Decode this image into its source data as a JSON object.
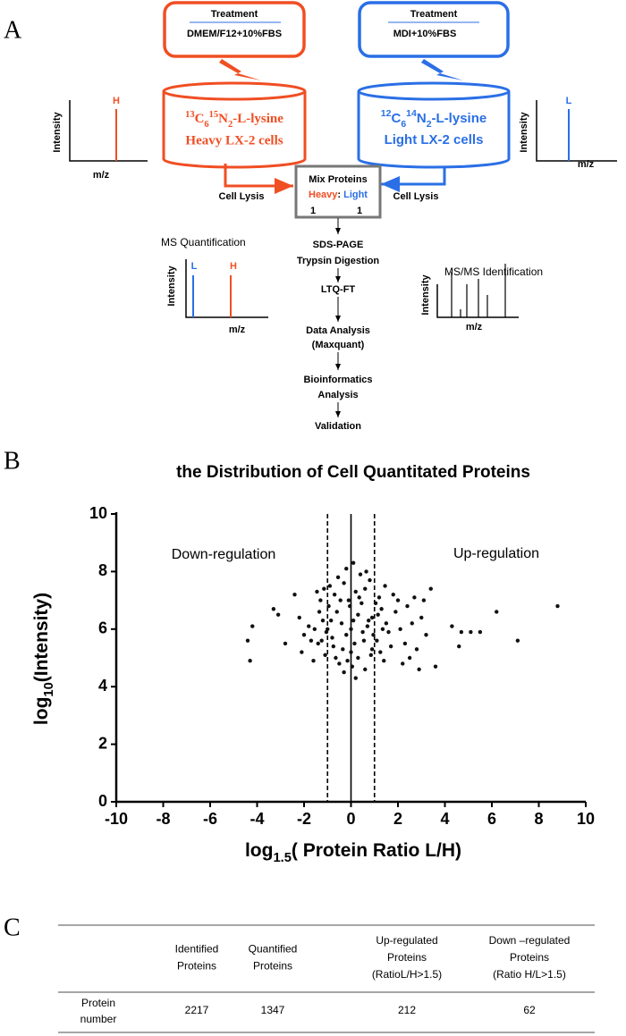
{
  "panel_labels": [
    "A",
    "B",
    "C"
  ],
  "panel_a": {
    "treatment_heavy": {
      "title": "Treatment",
      "medium": "DMEM/F12+10%FBS"
    },
    "treatment_light": {
      "title": "Treatment",
      "medium": "MDI+10%FBS"
    },
    "heavy_isotope": [
      "13",
      "C",
      "6",
      "15",
      "N",
      "2",
      "-L-lysine"
    ],
    "heavy_cells": "Heavy  LX-2 cells",
    "light_isotope": [
      "12",
      "C",
      "6",
      "14",
      "N",
      "2",
      "-L-lysine"
    ],
    "light_cells": "Light LX-2 cells",
    "spectrum_heavy": {
      "axis_y": "Intensity",
      "axis_x": "m/z",
      "peak": "H"
    },
    "spectrum_light": {
      "axis_y": "Intensity",
      "axis_x": "m/z",
      "peak": "L"
    },
    "cell_lysis_left": "Cell  Lysis",
    "cell_lysis_right": "Cell  Lysis",
    "mix": {
      "title": "Mix Proteins",
      "heavy": "Heavy",
      "sep": ":",
      "light": "Light",
      "ratio_heavy": 1,
      "ratio_light": 1
    },
    "steps": [
      [
        "SDS-PAGE",
        "Trypsin Digestion"
      ],
      [
        "LTQ-FT"
      ],
      [
        "Data Analysis",
        "(Maxquant)"
      ],
      [
        "Bioinformatics",
        "Analysis"
      ],
      [
        "Validation"
      ]
    ],
    "ms_quant": {
      "title": "MS Quantification",
      "axis_y": "Intensity",
      "axis_x": "m/z",
      "peaks": [
        "L",
        "H"
      ]
    },
    "msms": {
      "title": "MS/MS Identification",
      "axis_y": "Intensity",
      "axis_x": "m/z"
    }
  },
  "chart_data": {
    "type": "scatter",
    "title": "the Distribution of Cell Quantitated Proteins",
    "x_label": [
      "log",
      "1.5",
      "( Protein Ratio L/H)"
    ],
    "y_label": [
      "log",
      "10",
      "(Intensity)"
    ],
    "annotations": [
      "Down-regulation",
      "Up-regulation"
    ],
    "color": "#111111",
    "xlim": [
      -10,
      10
    ],
    "xticks": [
      -10,
      -8,
      -6,
      -4,
      -2,
      0,
      2,
      4,
      6,
      8,
      10
    ],
    "ylim": [
      0,
      10
    ],
    "yticks": [
      0,
      2,
      4,
      6,
      8,
      10
    ],
    "ref_lines": [
      {
        "x": -1,
        "dashed": true
      },
      {
        "x": 0,
        "dashed": false
      },
      {
        "x": 1,
        "dashed": true
      }
    ],
    "x": [
      0,
      0.1,
      -0.2,
      0.3,
      -0.4,
      0.5,
      -0.6,
      0.7,
      -0.8,
      0.9,
      -1.0,
      1.1,
      -1.2,
      1.3,
      -1.4,
      1.5,
      -0.1,
      0.2,
      -0.3,
      0.4,
      -0.2,
      0.1,
      0.6,
      -0.7,
      0.8,
      -0.9,
      1.2,
      -1.3,
      0.0,
      0.3,
      -0.5,
      0.6,
      -0.3,
      0.2,
      0.9,
      -1.1,
      1.4,
      -1.6,
      1.7,
      -1.8,
      1.9,
      -2.0,
      2.1,
      2.3,
      -2.2,
      2.4,
      2.6,
      2.8,
      3.0,
      3.2,
      -0.05,
      0.15,
      -0.35,
      0.45,
      -0.55,
      0.65,
      -0.75,
      0.85,
      -0.95,
      1.05,
      -1.15,
      1.25,
      -1.35,
      1.45,
      -1.55,
      1.6,
      -1.7,
      1.8,
      0.05,
      -0.15,
      0.35,
      -0.45,
      0.55,
      -0.65,
      0.75,
      -0.85,
      0.95,
      -1.05,
      1.15,
      -1.25,
      1.35,
      -1.45,
      2.0,
      -2.1,
      2.2,
      2.5,
      2.7,
      3.1,
      -4.4,
      -4.3,
      -4.2,
      -3.3,
      -3.1,
      -2.8,
      -2.4,
      3.4,
      3.6,
      2.9,
      4.3,
      4.6,
      4.7,
      5.1,
      5.5,
      6.2,
      7.1,
      8.8
    ],
    "y": [
      6.0,
      6.3,
      5.8,
      6.5,
      6.2,
      5.9,
      6.6,
      6.1,
      5.7,
      6.4,
      6.0,
      5.6,
      6.3,
      6.7,
      5.5,
      6.2,
      7.0,
      7.3,
      7.6,
      7.9,
      8.1,
      8.3,
      7.4,
      7.2,
      7.7,
      7.5,
      7.1,
      7.0,
      5.2,
      5.0,
      4.8,
      4.6,
      4.5,
      4.3,
      5.3,
      5.1,
      4.9,
      4.9,
      5.4,
      6.1,
      6.6,
      5.8,
      6.0,
      5.5,
      6.4,
      6.8,
      6.2,
      5.3,
      6.4,
      5.8,
      6.8,
      5.5,
      5.3,
      6.9,
      7.8,
      8.0,
      5.4,
      5.1,
      6.8,
      6.9,
      7.4,
      5.2,
      6.6,
      7.5,
      6.0,
      5.9,
      5.6,
      7.2,
      4.7,
      4.9,
      7.1,
      7.0,
      5.6,
      5.0,
      6.3,
      6.3,
      5.8,
      5.9,
      6.5,
      5.6,
      6.0,
      7.3,
      7.0,
      5.2,
      4.8,
      5.0,
      7.1,
      7.0,
      5.6,
      4.9,
      6.1,
      6.7,
      6.5,
      5.5,
      7.2,
      7.4,
      4.7,
      4.6,
      6.1,
      5.4,
      5.9,
      5.9,
      5.9,
      6.6,
      5.6,
      6.8
    ]
  },
  "table": {
    "columns": [
      [
        "Identified",
        "Proteins"
      ],
      [
        "Quantified",
        "Proteins"
      ],
      [
        "Up-regulated",
        "Proteins",
        "(RatioL/H>1.5)"
      ],
      [
        "Down –regulated",
        "Proteins",
        "(Ratio H/L>1.5)"
      ]
    ],
    "rows": [
      {
        "label": [
          "Protein",
          "number"
        ],
        "cells": [
          2217,
          1347,
          212,
          62
        ]
      }
    ]
  }
}
